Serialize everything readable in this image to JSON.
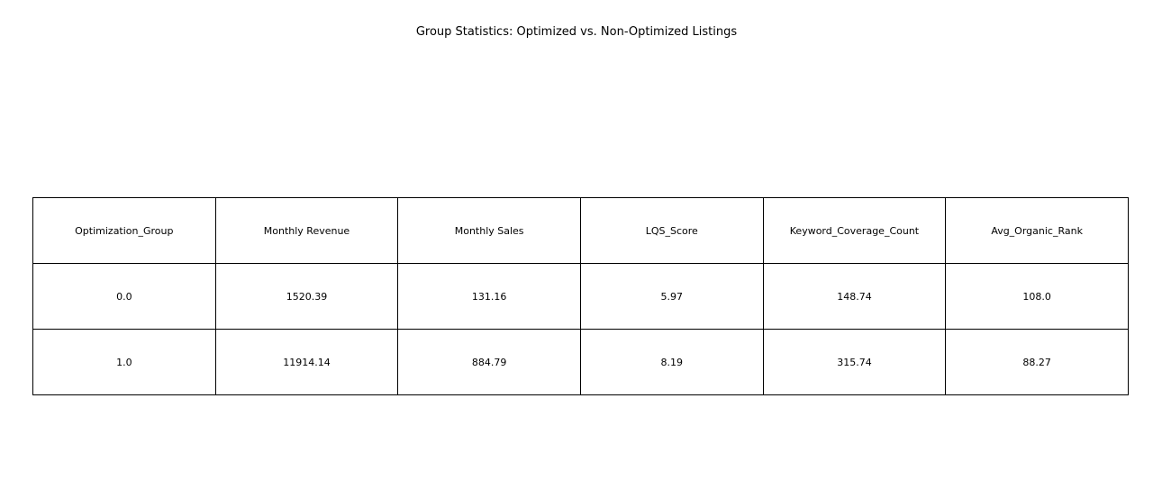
{
  "chart_data": {
    "type": "table",
    "title": "Group Statistics: Optimized vs. Non-Optimized Listings",
    "columns": [
      "Optimization_Group",
      "Monthly Revenue",
      "Monthly Sales",
      "LQS_Score",
      "Keyword_Coverage_Count",
      "Avg_Organic_Rank"
    ],
    "rows": [
      [
        "0.0",
        "1520.39",
        "131.16",
        "5.97",
        "148.74",
        "108.0"
      ],
      [
        "1.0",
        "11914.14",
        "884.79",
        "8.19",
        "315.74",
        "88.27"
      ]
    ]
  }
}
